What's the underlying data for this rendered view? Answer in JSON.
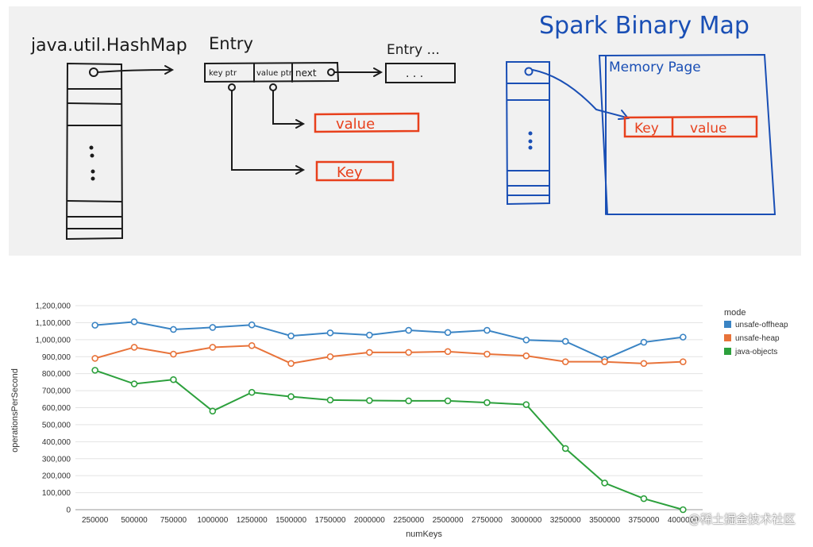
{
  "sketch": {
    "hashmap_label": "java.util.HashMap",
    "entry_label": "Entry",
    "entry_more_label": "Entry ...",
    "key_ptr_label": "key ptr",
    "value_ptr_label": "value ptr",
    "next_label": "next",
    "ellipsis": ". . .",
    "value_label": "value",
    "key_label": "Key",
    "spark_title": "Spark Binary Map",
    "memory_page_label": "Memory Page",
    "page_key_label": "Key",
    "page_value_label": "value",
    "colors": {
      "ink": "#1b1b1b",
      "blue": "#1a4fb5",
      "red": "#e8401c",
      "background": "#f1f1f1"
    }
  },
  "chart_data": {
    "type": "line",
    "xlabel": "numKeys",
    "ylabel": "operationsPerSecond",
    "x": [
      "250000",
      "500000",
      "750000",
      "1000000",
      "1250000",
      "1500000",
      "1750000",
      "2000000",
      "2250000",
      "2500000",
      "2750000",
      "3000000",
      "3250000",
      "3500000",
      "3750000",
      "4000000"
    ],
    "ylim": [
      0,
      1200000
    ],
    "yticks": [
      "0",
      "100,000",
      "200,000",
      "300,000",
      "400,000",
      "500,000",
      "600,000",
      "700,000",
      "800,000",
      "900,000",
      "1,000,000",
      "1,100,000",
      "1,200,000"
    ],
    "grid": true,
    "legend_title": "mode",
    "legend_position": "right",
    "series": [
      {
        "name": "unsafe-offheap",
        "color": "#3a84c4",
        "values": [
          1085000,
          1105000,
          1060000,
          1072000,
          1087000,
          1022000,
          1040000,
          1027000,
          1055000,
          1042000,
          1055000,
          998000,
          990000,
          885000,
          985000,
          1015000
        ]
      },
      {
        "name": "unsafe-heap",
        "color": "#e8733a",
        "values": [
          890000,
          955000,
          915000,
          955000,
          965000,
          860000,
          900000,
          925000,
          925000,
          930000,
          915000,
          905000,
          870000,
          870000,
          860000,
          870000
        ]
      },
      {
        "name": "java-objects",
        "color": "#2ca03c",
        "values": [
          820000,
          740000,
          765000,
          580000,
          690000,
          665000,
          645000,
          642000,
          640000,
          640000,
          630000,
          618000,
          360000,
          157000,
          65000,
          0
        ]
      }
    ]
  },
  "watermark": "@稀土掘金技术社区"
}
